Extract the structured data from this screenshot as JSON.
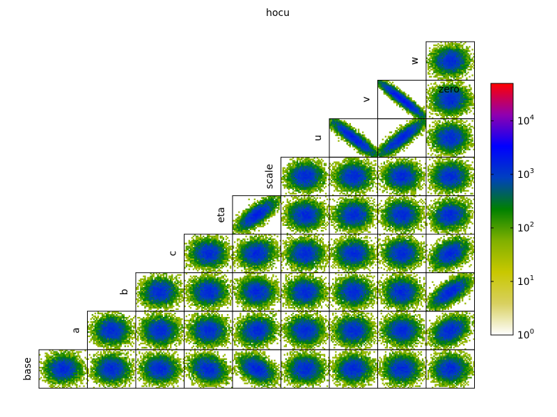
{
  "chart_data": {
    "type": "heatmap",
    "layout": "lower-triangular corner plot (pairwise 2D histograms)",
    "title": "hocu",
    "variables": [
      "base",
      "a",
      "b",
      "c",
      "eta",
      "scale",
      "u",
      "v",
      "w"
    ],
    "extra_column_label": "zero",
    "grid_rows_top_to_bottom": [
      "w",
      "v",
      "u",
      "scale",
      "eta",
      "c",
      "b",
      "a",
      "base"
    ],
    "grid_columns_left_to_right": [
      "base",
      "a",
      "b",
      "c",
      "eta",
      "scale",
      "u",
      "v",
      "zero"
    ],
    "panels": [
      {
        "row": "w",
        "col": "zero",
        "corr": 0.0,
        "spread": 1.0
      },
      {
        "row": "v",
        "col": "v",
        "corr": -0.95,
        "spread": 1.4
      },
      {
        "row": "v",
        "col": "zero",
        "corr": 0.0,
        "spread": 1.0
      },
      {
        "row": "u",
        "col": "u",
        "corr": -0.92,
        "spread": 1.4
      },
      {
        "row": "u",
        "col": "v",
        "corr": 0.9,
        "spread": 1.4
      },
      {
        "row": "u",
        "col": "zero",
        "corr": 0.0,
        "spread": 1.0
      },
      {
        "row": "scale",
        "col": "scale",
        "corr": 0.05,
        "spread": 1.0
      },
      {
        "row": "scale",
        "col": "u",
        "corr": 0.0,
        "spread": 1.0
      },
      {
        "row": "scale",
        "col": "v",
        "corr": 0.0,
        "spread": 1.0
      },
      {
        "row": "scale",
        "col": "zero",
        "corr": 0.0,
        "spread": 1.0
      },
      {
        "row": "eta",
        "col": "eta",
        "corr": 0.75,
        "spread": 1.1
      },
      {
        "row": "eta",
        "col": "scale",
        "corr": 0.0,
        "spread": 1.0
      },
      {
        "row": "eta",
        "col": "u",
        "corr": 0.05,
        "spread": 1.0
      },
      {
        "row": "eta",
        "col": "v",
        "corr": 0.0,
        "spread": 1.0
      },
      {
        "row": "eta",
        "col": "zero",
        "corr": 0.1,
        "spread": 1.0
      },
      {
        "row": "c",
        "col": "c",
        "corr": 0.0,
        "spread": 1.0
      },
      {
        "row": "c",
        "col": "eta",
        "corr": 0.1,
        "spread": 1.0
      },
      {
        "row": "c",
        "col": "scale",
        "corr": 0.0,
        "spread": 1.0
      },
      {
        "row": "c",
        "col": "u",
        "corr": 0.0,
        "spread": 1.0
      },
      {
        "row": "c",
        "col": "v",
        "corr": 0.0,
        "spread": 1.0
      },
      {
        "row": "c",
        "col": "zero",
        "corr": 0.35,
        "spread": 1.0
      },
      {
        "row": "b",
        "col": "b",
        "corr": 0.05,
        "spread": 1.0
      },
      {
        "row": "b",
        "col": "c",
        "corr": 0.0,
        "spread": 1.0
      },
      {
        "row": "b",
        "col": "eta",
        "corr": 0.0,
        "spread": 1.0
      },
      {
        "row": "b",
        "col": "scale",
        "corr": 0.0,
        "spread": 1.0
      },
      {
        "row": "b",
        "col": "u",
        "corr": 0.0,
        "spread": 1.0
      },
      {
        "row": "b",
        "col": "v",
        "corr": 0.0,
        "spread": 1.0
      },
      {
        "row": "b",
        "col": "zero",
        "corr": 0.7,
        "spread": 1.1
      },
      {
        "row": "a",
        "col": "a",
        "corr": 0.0,
        "spread": 1.0
      },
      {
        "row": "a",
        "col": "b",
        "corr": 0.0,
        "spread": 1.0
      },
      {
        "row": "a",
        "col": "c",
        "corr": 0.0,
        "spread": 1.0
      },
      {
        "row": "a",
        "col": "eta",
        "corr": 0.1,
        "spread": 1.0
      },
      {
        "row": "a",
        "col": "scale",
        "corr": 0.0,
        "spread": 1.0
      },
      {
        "row": "a",
        "col": "u",
        "corr": 0.0,
        "spread": 1.0
      },
      {
        "row": "a",
        "col": "v",
        "corr": 0.0,
        "spread": 1.0
      },
      {
        "row": "a",
        "col": "zero",
        "corr": 0.35,
        "spread": 1.0
      },
      {
        "row": "base",
        "col": "base",
        "corr": 0.0,
        "spread": 1.0
      },
      {
        "row": "base",
        "col": "a",
        "corr": 0.0,
        "spread": 1.0
      },
      {
        "row": "base",
        "col": "b",
        "corr": 0.0,
        "spread": 1.0
      },
      {
        "row": "base",
        "col": "c",
        "corr": -0.2,
        "spread": 1.0
      },
      {
        "row": "base",
        "col": "eta",
        "corr": -0.4,
        "spread": 1.0
      },
      {
        "row": "base",
        "col": "scale",
        "corr": 0.0,
        "spread": 1.0
      },
      {
        "row": "base",
        "col": "u",
        "corr": 0.0,
        "spread": 1.0
      },
      {
        "row": "base",
        "col": "v",
        "corr": 0.0,
        "spread": 1.0
      },
      {
        "row": "base",
        "col": "zero",
        "corr": 0.0,
        "spread": 1.0
      }
    ],
    "colorbar": {
      "scale": "log",
      "range": [
        1,
        50000
      ],
      "ticks": [
        {
          "base": "10",
          "exp": "0"
        },
        {
          "base": "10",
          "exp": "1"
        },
        {
          "base": "10",
          "exp": "2"
        },
        {
          "base": "10",
          "exp": "3"
        },
        {
          "base": "10",
          "exp": "4"
        }
      ],
      "colors": [
        "#ffffff",
        "#d8d060",
        "#c8c800",
        "#80b000",
        "#008000",
        "#0040c0",
        "#0000ff",
        "#9000b0",
        "#ff0000"
      ]
    }
  }
}
